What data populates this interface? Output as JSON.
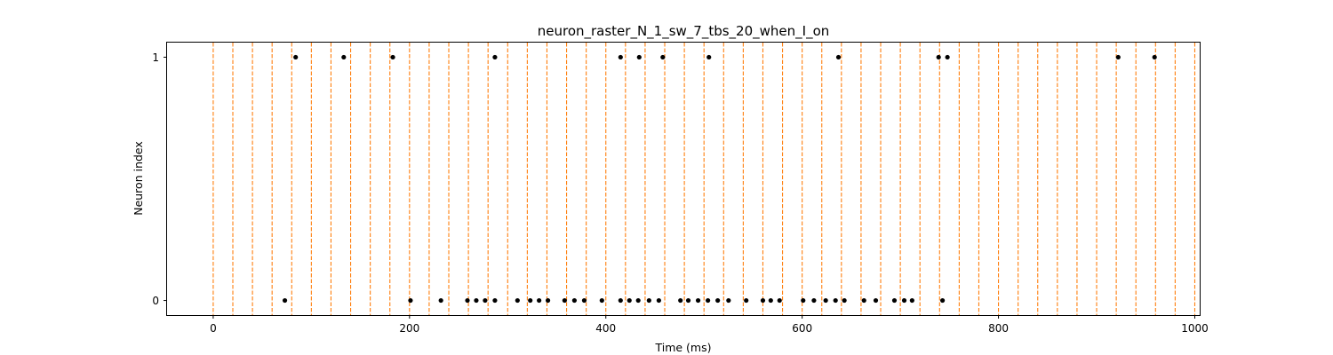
{
  "chart_data": {
    "type": "scatter",
    "title": "neuron_raster_N_1_sw_7_tbs_20_when_I_on",
    "xlabel": "Time (ms)",
    "ylabel": "Neuron index",
    "xlim": [
      -47,
      1005
    ],
    "ylim": [
      -0.06,
      1.06
    ],
    "x_ticks": [
      0,
      200,
      400,
      600,
      800,
      1000
    ],
    "x_tick_labels": [
      "0",
      "200",
      "400",
      "600",
      "800",
      "1000"
    ],
    "y_ticks": [
      0,
      1
    ],
    "y_tick_labels": [
      "0",
      "1"
    ],
    "grid": false,
    "vlines": {
      "x": [
        0,
        20,
        40,
        60,
        80,
        100,
        120,
        140,
        160,
        180,
        200,
        220,
        240,
        260,
        280,
        300,
        320,
        340,
        360,
        380,
        400,
        420,
        440,
        460,
        480,
        500,
        520,
        540,
        560,
        580,
        600,
        620,
        640,
        660,
        680,
        700,
        720,
        740,
        760,
        780,
        800,
        820,
        840,
        860,
        880,
        900,
        920,
        940,
        960,
        980,
        1000
      ],
      "color": "#ff7f0e",
      "style": "dashed"
    },
    "series": [
      {
        "neuron": 0,
        "color": "#000000",
        "x": [
          73,
          201,
          232,
          259,
          268,
          277,
          287,
          310,
          323,
          332,
          341,
          358,
          368,
          378,
          396,
          415,
          424,
          433,
          444,
          454,
          476,
          484,
          494,
          504,
          514,
          525,
          543,
          560,
          568,
          577,
          601,
          612,
          624,
          634,
          643,
          663,
          675,
          694,
          704,
          712,
          743
        ]
      },
      {
        "neuron": 1,
        "color": "#000000",
        "x": [
          84,
          133,
          183,
          287,
          415,
          434,
          458,
          505,
          637,
          739,
          748,
          922,
          959
        ]
      }
    ]
  }
}
